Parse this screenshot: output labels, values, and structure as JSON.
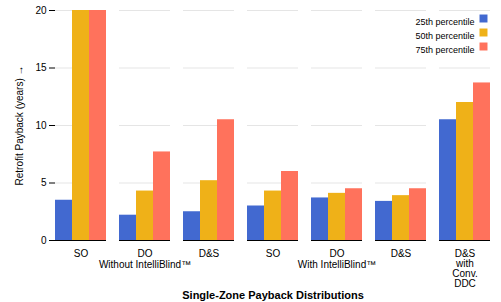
{
  "chart_data": {
    "type": "bar",
    "categories": [
      "SO",
      "DO",
      "D&S",
      "SO",
      "DO",
      "D&S",
      "D&S\nwith\nConv.\nDDC"
    ],
    "series": [
      {
        "name": "25th percentile",
        "values": [
          3.5,
          2.2,
          2.5,
          3.0,
          3.7,
          3.4,
          10.5
        ]
      },
      {
        "name": "50th percentile",
        "values": [
          20.0,
          4.3,
          5.2,
          4.3,
          4.1,
          3.9,
          12.0
        ]
      },
      {
        "name": "75th percentile",
        "values": [
          20.0,
          7.7,
          10.5,
          6.0,
          4.5,
          4.5,
          13.7
        ]
      }
    ],
    "annotations": [
      "Without IntelliBlind™",
      "With IntelliBlind™"
    ],
    "xlabel": "Single-Zone Payback Distributions",
    "ylabel": "Retrofit Payback (years)",
    "ylim": [
      0,
      20
    ],
    "yticks": [
      0,
      5,
      10,
      15,
      20
    ],
    "grid": true,
    "legend": "upper right"
  }
}
